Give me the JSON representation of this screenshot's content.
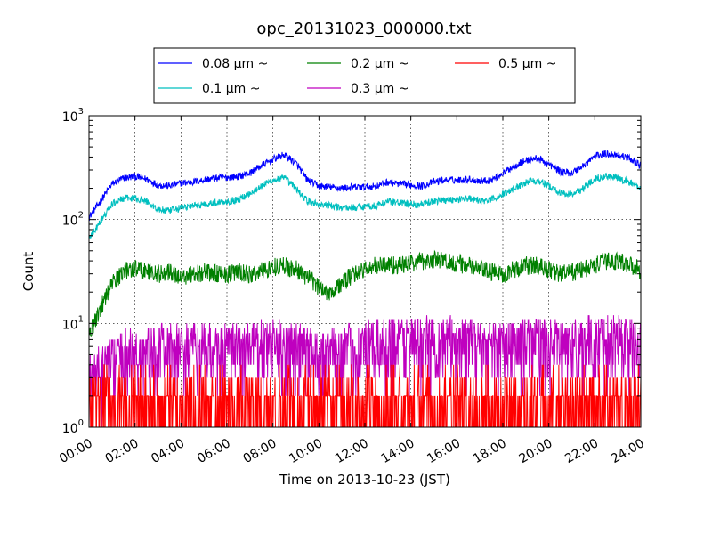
{
  "chart_data": {
    "type": "line",
    "title": "opc_20131023_000000.txt",
    "xlabel": "Time on 2013-10-23 (JST)",
    "ylabel": "Count",
    "yscale": "log",
    "ylim": [
      1,
      1000
    ],
    "xlim": [
      "00:00",
      "24:00"
    ],
    "grid": true,
    "legend_position": "top-center",
    "x_ticks": [
      "00:00",
      "02:00",
      "04:00",
      "06:00",
      "08:00",
      "10:00",
      "12:00",
      "14:00",
      "16:00",
      "18:00",
      "20:00",
      "22:00",
      "24:00"
    ],
    "y_ticks": [
      {
        "base": "10",
        "exp": "0"
      },
      {
        "base": "10",
        "exp": "1"
      },
      {
        "base": "10",
        "exp": "2"
      },
      {
        "base": "10",
        "exp": "3"
      }
    ],
    "x_hours": [
      0,
      0.5,
      1,
      1.5,
      2,
      2.5,
      3,
      3.5,
      4,
      4.5,
      5,
      5.5,
      6,
      6.5,
      7,
      7.5,
      8,
      8.5,
      9,
      9.5,
      10,
      10.5,
      11,
      11.5,
      12,
      12.5,
      13,
      13.5,
      14,
      14.5,
      15,
      15.5,
      16,
      16.5,
      17,
      17.5,
      18,
      18.5,
      19,
      19.5,
      20,
      20.5,
      21,
      21.5,
      22,
      22.5,
      23,
      23.5,
      24
    ],
    "series": [
      {
        "name": "0.08 μm ~",
        "color": "#0000ff",
        "noise": "low",
        "values": [
          105,
          150,
          220,
          250,
          260,
          245,
          215,
          210,
          225,
          230,
          240,
          250,
          255,
          260,
          280,
          330,
          380,
          420,
          350,
          240,
          210,
          205,
          200,
          205,
          205,
          210,
          230,
          220,
          215,
          210,
          230,
          240,
          240,
          245,
          235,
          240,
          280,
          330,
          370,
          390,
          340,
          290,
          280,
          330,
          410,
          430,
          420,
          390,
          330
        ]
      },
      {
        "name": "0.1 μm ~",
        "color": "#00bfbf",
        "noise": "low",
        "values": [
          65,
          95,
          140,
          160,
          160,
          150,
          125,
          120,
          130,
          135,
          140,
          145,
          150,
          155,
          180,
          210,
          240,
          250,
          200,
          150,
          140,
          135,
          130,
          130,
          135,
          135,
          150,
          145,
          140,
          140,
          150,
          155,
          155,
          160,
          150,
          155,
          175,
          200,
          230,
          240,
          210,
          180,
          175,
          200,
          250,
          260,
          250,
          230,
          200
        ]
      },
      {
        "name": "0.2 μm ~",
        "color": "#008000",
        "noise": "mid",
        "values": [
          8,
          14,
          24,
          32,
          34,
          32,
          30,
          31,
          28,
          30,
          31,
          30,
          30,
          31,
          29,
          32,
          35,
          36,
          33,
          28,
          22,
          20,
          24,
          30,
          33,
          36,
          37,
          36,
          38,
          40,
          41,
          40,
          38,
          36,
          33,
          31,
          30,
          33,
          36,
          36,
          33,
          30,
          31,
          33,
          36,
          40,
          40,
          37,
          33
        ]
      },
      {
        "name": "0.3 μm ~",
        "color": "#bf00bf",
        "noise": "high",
        "values": [
          2.5,
          3,
          4,
          4.5,
          4.5,
          4.5,
          5,
          5,
          5,
          5,
          5,
          5,
          5,
          5,
          5.5,
          5.5,
          5.5,
          5.5,
          5,
          5,
          4.5,
          4.5,
          5,
          5,
          5.5,
          5.5,
          6,
          6,
          6,
          6,
          6,
          6,
          6,
          6,
          5.5,
          5.5,
          5.5,
          5.5,
          6,
          6,
          5.5,
          5.5,
          5.5,
          6,
          6,
          6.5,
          6.5,
          6,
          5.5
        ]
      },
      {
        "name": "0.5 μm ~",
        "color": "#ff0000",
        "noise": "spiky",
        "values": [
          1.4,
          1.5,
          1.6,
          1.6,
          1.6,
          1.6,
          1.6,
          1.6,
          1.6,
          1.6,
          1.6,
          1.7,
          1.7,
          1.7,
          1.7,
          1.7,
          1.7,
          1.7,
          1.7,
          1.7,
          1.7,
          1.7,
          1.7,
          1.7,
          1.7,
          1.7,
          1.7,
          1.7,
          1.7,
          1.7,
          1.7,
          1.7,
          1.7,
          1.7,
          1.7,
          1.7,
          1.7,
          1.7,
          1.7,
          1.7,
          1.7,
          1.7,
          1.7,
          1.7,
          1.7,
          1.8,
          1.8,
          1.8,
          1.7
        ]
      }
    ]
  }
}
